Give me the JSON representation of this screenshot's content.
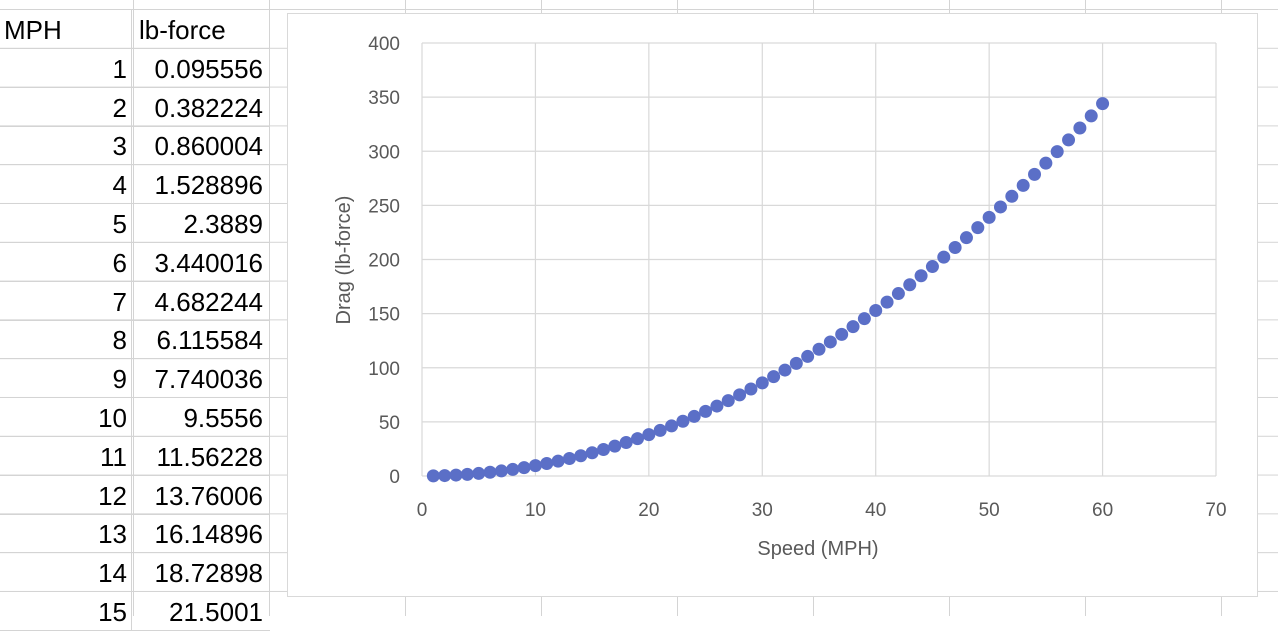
{
  "sheet": {
    "headers": [
      "MPH",
      "lb-force"
    ],
    "rows": [
      [
        "1",
        "0.095556"
      ],
      [
        "2",
        "0.382224"
      ],
      [
        "3",
        "0.860004"
      ],
      [
        "4",
        "1.528896"
      ],
      [
        "5",
        "2.3889"
      ],
      [
        "6",
        "3.440016"
      ],
      [
        "7",
        "4.682244"
      ],
      [
        "8",
        "6.115584"
      ],
      [
        "9",
        "7.740036"
      ],
      [
        "10",
        "9.5556"
      ],
      [
        "11",
        "11.56228"
      ],
      [
        "12",
        "13.76006"
      ],
      [
        "13",
        "16.14896"
      ],
      [
        "14",
        "18.72898"
      ],
      [
        "15",
        "21.5001"
      ]
    ]
  },
  "chart_data": {
    "type": "scatter",
    "xlabel": "Speed (MPH)",
    "ylabel": "Drag (lb-force)",
    "xlim": [
      0,
      70
    ],
    "ylim": [
      0,
      400
    ],
    "xticks": [
      "0",
      "10",
      "20",
      "30",
      "40",
      "50",
      "60",
      "70"
    ],
    "yticks": [
      "0",
      "50",
      "100",
      "150",
      "200",
      "250",
      "300",
      "350",
      "400"
    ],
    "grid": true,
    "marker_color": "#5B6FC7",
    "x": [
      1,
      2,
      3,
      4,
      5,
      6,
      7,
      8,
      9,
      10,
      11,
      12,
      13,
      14,
      15,
      16,
      17,
      18,
      19,
      20,
      21,
      22,
      23,
      24,
      25,
      26,
      27,
      28,
      29,
      30,
      31,
      32,
      33,
      34,
      35,
      36,
      37,
      38,
      39,
      40,
      41,
      42,
      43,
      44,
      45,
      46,
      47,
      48,
      49,
      50,
      51,
      52,
      53,
      54,
      55,
      56,
      57,
      58,
      59,
      60
    ],
    "y": [
      0.1,
      0.38,
      0.86,
      1.53,
      2.39,
      3.44,
      4.68,
      6.12,
      7.74,
      9.56,
      11.56,
      13.76,
      16.15,
      18.73,
      21.5,
      24.46,
      27.62,
      30.96,
      34.5,
      38.22,
      42.14,
      46.25,
      50.55,
      55.04,
      59.72,
      64.6,
      69.66,
      74.92,
      80.37,
      86.0,
      91.83,
      97.85,
      104.06,
      110.46,
      117.06,
      123.84,
      130.82,
      137.98,
      145.34,
      152.89,
      160.63,
      168.56,
      176.68,
      185.0,
      193.5,
      202.2,
      211.08,
      220.16,
      229.43,
      238.89,
      248.54,
      258.38,
      268.42,
      278.64,
      289.06,
      299.66,
      310.46,
      321.45,
      332.63,
      344.0
    ]
  }
}
